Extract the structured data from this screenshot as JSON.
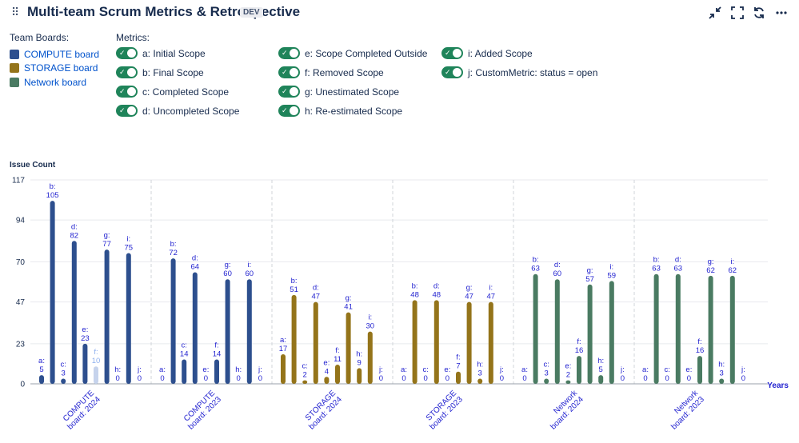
{
  "header": {
    "title": "Multi-team Scrum Metrics & Retrospective",
    "badge": "DEV",
    "icons": [
      "drag-handle-icon",
      "collapse-icon",
      "fullscreen-icon",
      "refresh-icon",
      "more-icon"
    ]
  },
  "team_boards": {
    "title": "Team Boards:",
    "items": [
      {
        "label": "COMPUTE board",
        "color": "#2d4f8e"
      },
      {
        "label": "STORAGE board",
        "color": "#94741a"
      },
      {
        "label": "Network board",
        "color": "#4a7b62"
      }
    ]
  },
  "metrics": {
    "title": "Metrics:",
    "items": [
      {
        "label": "a: Initial Scope",
        "enabled": true
      },
      {
        "label": "b: Final Scope",
        "enabled": true
      },
      {
        "label": "c: Completed Scope",
        "enabled": true
      },
      {
        "label": "d: Uncompleted Scope",
        "enabled": true
      },
      {
        "label": "e: Scope Completed Outside",
        "enabled": true
      },
      {
        "label": "f: Removed Scope",
        "enabled": true
      },
      {
        "label": "g: Unestimated Scope",
        "enabled": true
      },
      {
        "label": "h: Re-estimated Scope",
        "enabled": true
      },
      {
        "label": "i: Added Scope",
        "enabled": true
      },
      {
        "label": "j: CustomMetric: status = open",
        "enabled": true
      }
    ]
  },
  "colors": {
    "compute": "#2d4f8e",
    "storage": "#94741a",
    "network": "#4a7b62",
    "highlight": "#c6d3ec",
    "label": "#1f1fcf",
    "toggle": "#1f845a"
  },
  "chart_data": {
    "type": "bar",
    "ylabel": "Issue Count",
    "xlabel": "Years",
    "ylim": [
      0,
      117
    ],
    "yticks": [
      0,
      23,
      47,
      70,
      94,
      117
    ],
    "metric_letters": [
      "a",
      "b",
      "c",
      "d",
      "e",
      "f",
      "g",
      "h",
      "i",
      "j"
    ],
    "groups": [
      {
        "label": "COMPUTE board: 2024",
        "board": "compute",
        "values": [
          5,
          105,
          3,
          82,
          23,
          10,
          77,
          0,
          75,
          0
        ],
        "highlight_index": 5
      },
      {
        "label": "COMPUTE board: 2023",
        "board": "compute",
        "values": [
          0,
          72,
          14,
          64,
          0,
          14,
          60,
          0,
          60,
          0
        ]
      },
      {
        "label": "STORAGE board: 2024",
        "board": "storage",
        "values": [
          17,
          51,
          2,
          47,
          4,
          11,
          41,
          9,
          30,
          0
        ]
      },
      {
        "label": "STORAGE board: 2023",
        "board": "storage",
        "values": [
          0,
          48,
          0,
          48,
          0,
          7,
          47,
          3,
          47,
          0
        ]
      },
      {
        "label": "Network board: 2024",
        "board": "network",
        "values": [
          0,
          63,
          3,
          60,
          2,
          16,
          57,
          5,
          59,
          0
        ]
      },
      {
        "label": "Network board: 2023",
        "board": "network",
        "values": [
          0,
          63,
          0,
          63,
          0,
          16,
          62,
          3,
          62,
          0
        ]
      }
    ]
  }
}
